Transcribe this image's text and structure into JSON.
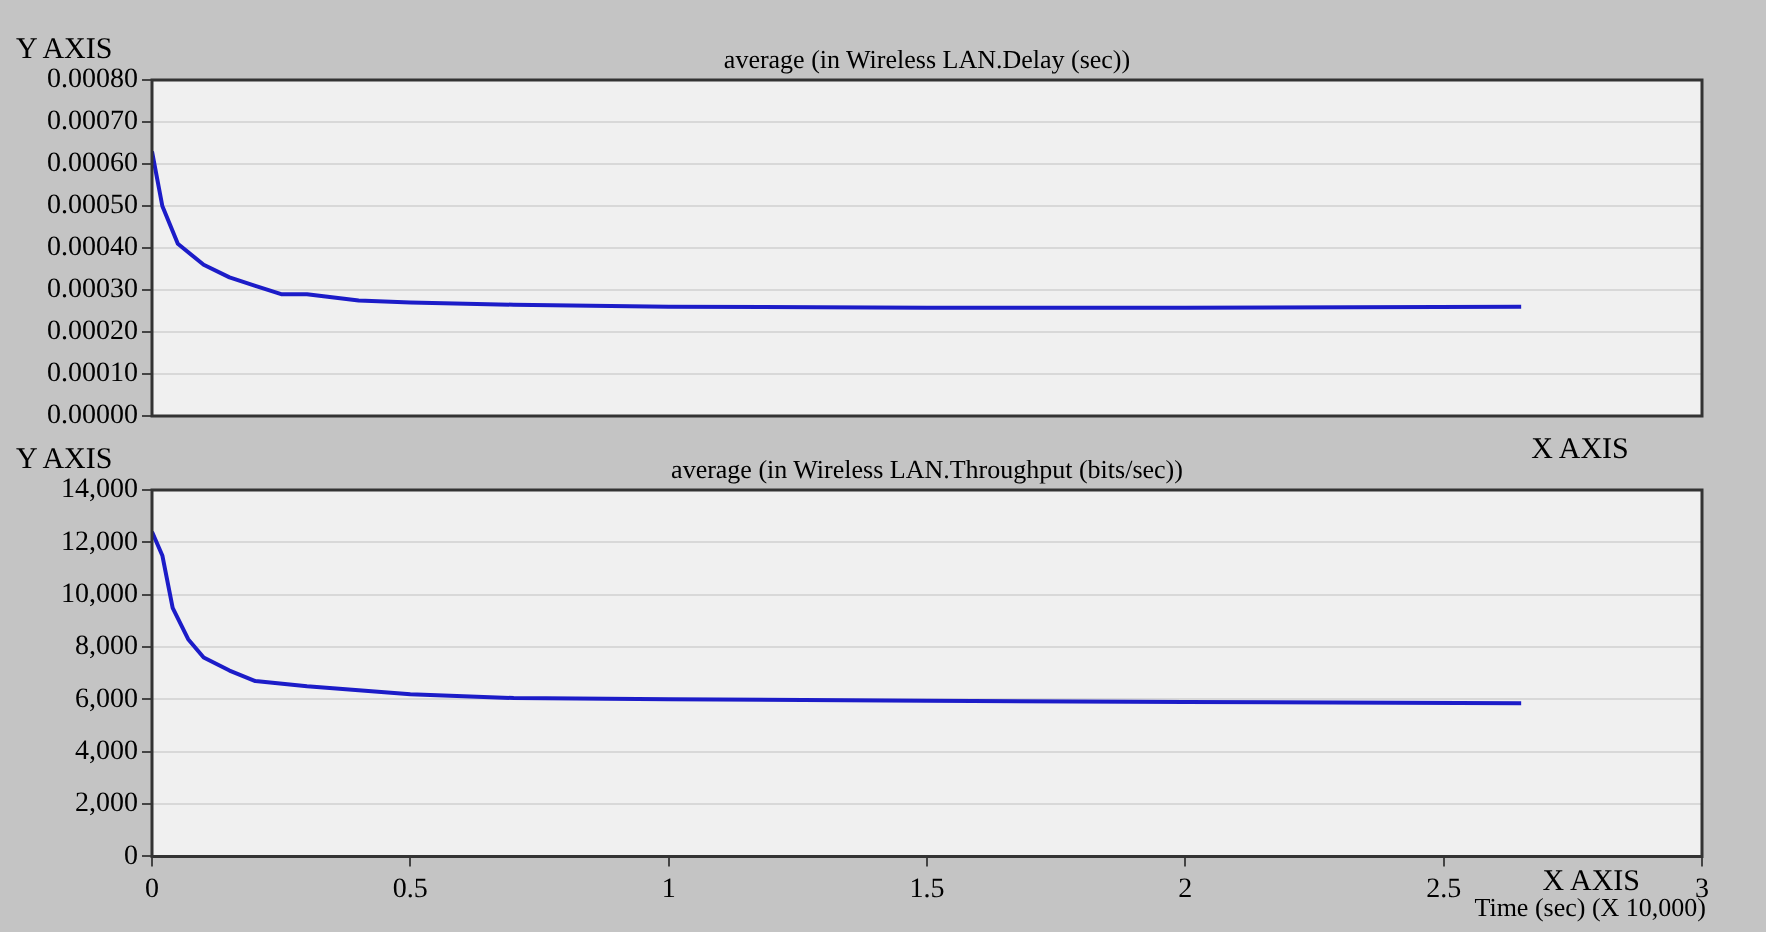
{
  "chart_data": [
    {
      "type": "line",
      "title": "average (in Wireless LAN.Delay (sec))",
      "ylabel": "Y AXIS",
      "xlabel": "X AXIS",
      "tick_labels": "y",
      "grid": "y",
      "legend": false,
      "marker": "none",
      "line_style": "solid",
      "xlim": [
        0,
        3
      ],
      "ylim": [
        0,
        0.0008
      ],
      "yticks": [
        {
          "value": 0,
          "label": "0.00000"
        },
        {
          "value": 0.0001,
          "label": "0.00010"
        },
        {
          "value": 0.0002,
          "label": "0.00020"
        },
        {
          "value": 0.0003,
          "label": "0.00030"
        },
        {
          "value": 0.0004,
          "label": "0.00040"
        },
        {
          "value": 0.0005,
          "label": "0.00050"
        },
        {
          "value": 0.0006,
          "label": "0.00060"
        },
        {
          "value": 0.0007,
          "label": "0.00070"
        },
        {
          "value": 0.0008,
          "label": "0.00080"
        }
      ],
      "x": [
        0,
        0.02,
        0.05,
        0.1,
        0.15,
        0.2,
        0.25,
        0.3,
        0.4,
        0.5,
        0.7,
        1,
        1.5,
        2,
        2.65
      ],
      "series": [
        {
          "color": "#1c1cc8",
          "values": [
            0.00063,
            0.0005,
            0.00041,
            0.00036,
            0.00033,
            0.00031,
            0.00029,
            0.00029,
            0.000275,
            0.00027,
            0.000265,
            0.00026,
            0.000258,
            0.000258,
            0.00026
          ]
        }
      ]
    },
    {
      "type": "line",
      "title": "average (in Wireless LAN.Throughput (bits/sec))",
      "ylabel": "Y AXIS",
      "xlabel": "Time (sec) (X 10,000)",
      "annotations": [
        "X AXIS"
      ],
      "grid": "y",
      "legend": false,
      "marker": "none",
      "line_style": "solid",
      "xlim": [
        0,
        3
      ],
      "xticks": [
        0,
        0.5,
        1,
        1.5,
        2,
        2.5,
        3
      ],
      "ylim": [
        0,
        14000
      ],
      "yticks": [
        {
          "value": 0,
          "label": "0"
        },
        {
          "value": 2000,
          "label": "2,000"
        },
        {
          "value": 4000,
          "label": "4,000"
        },
        {
          "value": 6000,
          "label": "6,000"
        },
        {
          "value": 8000,
          "label": "8,000"
        },
        {
          "value": 10000,
          "label": "10,000"
        },
        {
          "value": 12000,
          "label": "12,000"
        },
        {
          "value": 14000,
          "label": "14,000"
        }
      ],
      "x": [
        0,
        0.02,
        0.04,
        0.07,
        0.1,
        0.15,
        0.2,
        0.3,
        0.5,
        0.7,
        1,
        1.5,
        2,
        2.65
      ],
      "series": [
        {
          "color": "#1c1cc8",
          "values": [
            12400,
            11500,
            9500,
            8300,
            7600,
            7100,
            6700,
            6500,
            6200,
            6050,
            6000,
            5950,
            5900,
            5850
          ]
        }
      ]
    }
  ]
}
